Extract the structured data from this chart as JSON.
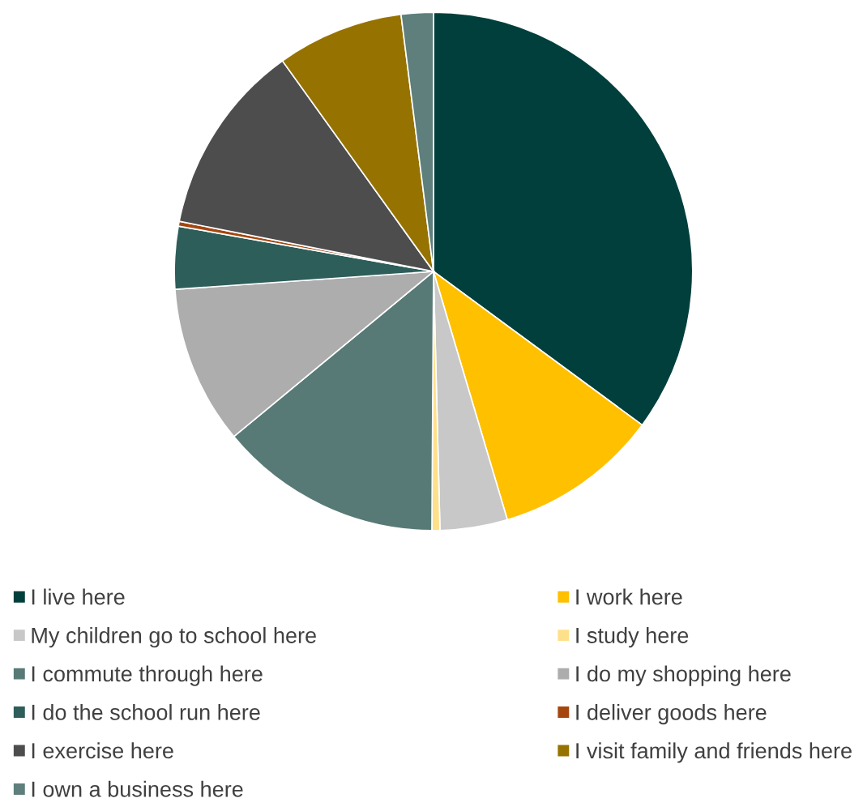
{
  "chart_data": {
    "type": "pie",
    "categories": [
      "I live here",
      "I work here",
      "My children go to school here",
      "I study here",
      "I commute through here",
      "I do my shopping here",
      "I do the school run here",
      "I deliver goods here",
      "I exercise here",
      "I visit family and friends here",
      "I own a business here"
    ],
    "values": [
      35.1,
      10.3,
      4.2,
      0.5,
      13.9,
      9.9,
      3.9,
      0.3,
      12.0,
      7.9,
      2.0
    ],
    "colors": [
      "#003f3c",
      "#ffc000",
      "#c8c8c8",
      "#ffe08a",
      "#587a77",
      "#adadad",
      "#2d5e5a",
      "#a5460f",
      "#4d4d4d",
      "#967300",
      "#5e7f7c"
    ],
    "legend": "bottom"
  }
}
